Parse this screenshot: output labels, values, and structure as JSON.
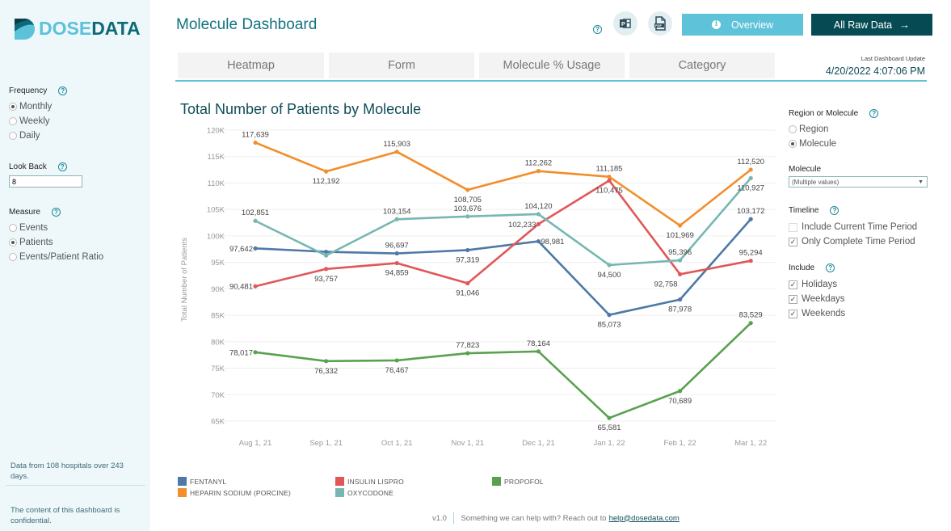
{
  "brand": {
    "logo_part1": "DOSE",
    "logo_part2": "DATA",
    "colors": {
      "primary_light": "#5bc2d9",
      "primary_dark": "#0d6b78",
      "button_dark": "#064b54"
    }
  },
  "sidebar": {
    "frequency": {
      "label": "Frequency",
      "options": [
        "Monthly",
        "Weekly",
        "Daily"
      ],
      "selected": "Monthly"
    },
    "look_back": {
      "label": "Look Back",
      "value": "8"
    },
    "measure": {
      "label": "Measure",
      "options": [
        "Events",
        "Patients",
        "Events/Patient Ratio"
      ],
      "selected": "Patients"
    },
    "note_data": "Data from 108 hospitals over 243 days.",
    "note_confidential": "The content of this dashboard is confidential."
  },
  "header": {
    "title": "Molecule Dashboard",
    "help_icon": "question-icon",
    "export_ppt_icon": "powerpoint-icon",
    "export_pdf_icon": "pdf-icon",
    "overview_label": "Overview",
    "raw_data_label": "All Raw Data",
    "raw_data_arrow": "→"
  },
  "tabs": [
    {
      "label": "Heatmap"
    },
    {
      "label": "Form"
    },
    {
      "label": "Molecule % Usage"
    },
    {
      "label": "Category"
    }
  ],
  "last_update": {
    "label": "Last Dashboard Update",
    "value": "4/20/2022 4:07:06 PM"
  },
  "right_panel": {
    "region_or_molecule": {
      "label": "Region or Molecule",
      "options": [
        "Region",
        "Molecule"
      ],
      "selected": "Molecule"
    },
    "molecule": {
      "label": "Molecule",
      "value": "(Multiple values)"
    },
    "timeline": {
      "label": "Timeline",
      "options": [
        {
          "label": "Include Current Time Period",
          "checked": false
        },
        {
          "label": "Only Complete Time Period",
          "checked": true
        }
      ]
    },
    "include": {
      "label": "Include",
      "options": [
        {
          "label": "Holidays",
          "checked": true
        },
        {
          "label": "Weekdays",
          "checked": true
        },
        {
          "label": "Weekends",
          "checked": true
        }
      ]
    }
  },
  "footer": {
    "version": "v1.0",
    "text": "Something we can help with? Reach out to",
    "email": "help@dosedata.com"
  },
  "chart_data": {
    "type": "line",
    "title": "Total Number of Patients by Molecule",
    "xlabel": "",
    "ylabel": "Total Number of Patients",
    "x": [
      "Aug 1, 21",
      "Sep 1, 21",
      "Oct 1, 21",
      "Nov 1, 21",
      "Dec 1, 21",
      "Jan 1, 22",
      "Feb 1, 22",
      "Mar 1, 22"
    ],
    "ylim": [
      63000,
      121000
    ],
    "yticks": [
      65000,
      70000,
      75000,
      80000,
      85000,
      90000,
      95000,
      100000,
      105000,
      110000,
      115000,
      120000
    ],
    "ytick_labels": [
      "65K",
      "70K",
      "75K",
      "80K",
      "85K",
      "90K",
      "95K",
      "100K",
      "105K",
      "110K",
      "115K",
      "120K"
    ],
    "grid": true,
    "legend_position": "bottom",
    "series": [
      {
        "name": "FENTANYL",
        "color": "#4e79a7",
        "values": [
          97642,
          97000,
          96697,
          97319,
          98981,
          85073,
          87978,
          103172
        ],
        "labels": [
          "97,642",
          "",
          "96,697",
          "97,319",
          "98,981",
          "85,073",
          "87,978",
          "103,172"
        ],
        "label_pos": [
          "left",
          "none",
          "above",
          "below",
          "right",
          "below",
          "below",
          "above"
        ]
      },
      {
        "name": "HEPARIN SODIUM (PORCINE)",
        "color": "#f28e2b",
        "values": [
          117639,
          112192,
          115903,
          108705,
          112262,
          111185,
          101969,
          112520
        ],
        "labels": [
          "117,639",
          "112,192",
          "115,903",
          "108,705",
          "112,262",
          "111,185",
          "101,969",
          "112,520"
        ],
        "label_pos": [
          "above",
          "below",
          "above",
          "below",
          "above",
          "above",
          "below",
          "above"
        ]
      },
      {
        "name": "INSULIN LISPRO",
        "color": "#e15759",
        "values": [
          90481,
          93757,
          94859,
          91046,
          102233,
          110475,
          92758,
          95294
        ],
        "labels": [
          "90,481",
          "93,757",
          "94,859",
          "91,046",
          "102,233",
          "110,475",
          "92,758",
          "95,294"
        ],
        "label_pos": [
          "left",
          "below",
          "below",
          "below",
          "left",
          "below",
          "left-below",
          "above"
        ]
      },
      {
        "name": "OXYCODONE",
        "color": "#76b7b2",
        "values": [
          102851,
          96300,
          103154,
          103676,
          104120,
          94500,
          95396,
          110927
        ],
        "labels": [
          "102,851",
          "",
          "103,154",
          "103,676",
          "104,120",
          "94,500",
          "95,396",
          "110,927"
        ],
        "label_pos": [
          "above",
          "none",
          "above",
          "above",
          "above",
          "below",
          "above",
          "below"
        ]
      },
      {
        "name": "PROPOFOL",
        "color": "#59a14f",
        "values": [
          78017,
          76332,
          76467,
          77823,
          78164,
          65581,
          70689,
          83529
        ],
        "labels": [
          "78,017",
          "76,332",
          "76,467",
          "77,823",
          "78,164",
          "65,581",
          "70,689",
          "83,529"
        ],
        "label_pos": [
          "left",
          "below",
          "below",
          "above",
          "above",
          "below",
          "below",
          "above"
        ]
      }
    ],
    "legend_order": [
      "FENTANYL",
      "INSULIN LISPRO",
      "PROPOFOL",
      "HEPARIN SODIUM (PORCINE)",
      "OXYCODONE"
    ]
  }
}
